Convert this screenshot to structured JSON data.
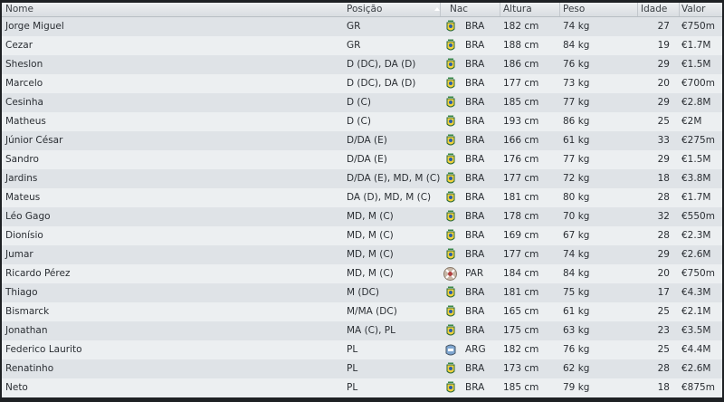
{
  "columns": {
    "name": "Nome",
    "position": "Posição",
    "nationality": "Nac",
    "height": "Altura",
    "weight": "Peso",
    "age": "Idade",
    "value": "Valor"
  },
  "players": [
    {
      "name": "Jorge Miguel",
      "position": "GR",
      "nat": "BRA",
      "height": "182 cm",
      "weight": "74 kg",
      "age": "27",
      "value": "€750m"
    },
    {
      "name": "Cezar",
      "position": "GR",
      "nat": "BRA",
      "height": "188 cm",
      "weight": "84 kg",
      "age": "19",
      "value": "€1.7M"
    },
    {
      "name": "Sheslon",
      "position": "D (DC), DA (D)",
      "nat": "BRA",
      "height": "186 cm",
      "weight": "76 kg",
      "age": "29",
      "value": "€1.5M"
    },
    {
      "name": "Marcelo",
      "position": "D (DC), DA (D)",
      "nat": "BRA",
      "height": "177 cm",
      "weight": "73 kg",
      "age": "20",
      "value": "€700m"
    },
    {
      "name": "Cesinha",
      "position": "D (C)",
      "nat": "BRA",
      "height": "185 cm",
      "weight": "77 kg",
      "age": "29",
      "value": "€2.8M"
    },
    {
      "name": "Matheus",
      "position": "D (C)",
      "nat": "BRA",
      "height": "193 cm",
      "weight": "86 kg",
      "age": "25",
      "value": "€2M"
    },
    {
      "name": "Júnior César",
      "position": "D/DA (E)",
      "nat": "BRA",
      "height": "166 cm",
      "weight": "61 kg",
      "age": "33",
      "value": "€275m"
    },
    {
      "name": "Sandro",
      "position": "D/DA (E)",
      "nat": "BRA",
      "height": "176 cm",
      "weight": "77 kg",
      "age": "29",
      "value": "€1.5M"
    },
    {
      "name": "Jardins",
      "position": "D/DA (E), MD, M (C)",
      "nat": "BRA",
      "height": "177 cm",
      "weight": "72 kg",
      "age": "18",
      "value": "€3.8M"
    },
    {
      "name": "Mateus",
      "position": "DA (D), MD, M (C)",
      "nat": "BRA",
      "height": "181 cm",
      "weight": "80 kg",
      "age": "28",
      "value": "€1.7M"
    },
    {
      "name": "Léo Gago",
      "position": "MD, M (C)",
      "nat": "BRA",
      "height": "178 cm",
      "weight": "70 kg",
      "age": "32",
      "value": "€550m"
    },
    {
      "name": "Dionísio",
      "position": "MD, M (C)",
      "nat": "BRA",
      "height": "169 cm",
      "weight": "67 kg",
      "age": "28",
      "value": "€2.3M"
    },
    {
      "name": "Jumar",
      "position": "MD, M (C)",
      "nat": "BRA",
      "height": "177 cm",
      "weight": "74 kg",
      "age": "29",
      "value": "€2.6M"
    },
    {
      "name": "Ricardo Pérez",
      "position": "MD, M (C)",
      "nat": "PAR",
      "height": "184 cm",
      "weight": "84 kg",
      "age": "20",
      "value": "€750m"
    },
    {
      "name": "Thiago",
      "position": "M (DC)",
      "nat": "BRA",
      "height": "181 cm",
      "weight": "75 kg",
      "age": "17",
      "value": "€4.3M"
    },
    {
      "name": "Bismarck",
      "position": "M/MA (DC)",
      "nat": "BRA",
      "height": "165 cm",
      "weight": "61 kg",
      "age": "25",
      "value": "€2.1M"
    },
    {
      "name": "Jonathan",
      "position": "MA (C), PL",
      "nat": "BRA",
      "height": "175 cm",
      "weight": "63 kg",
      "age": "23",
      "value": "€3.5M"
    },
    {
      "name": "Federico Laurito",
      "position": "PL",
      "nat": "ARG",
      "height": "182 cm",
      "weight": "76 kg",
      "age": "25",
      "value": "€4.4M"
    },
    {
      "name": "Renatinho",
      "position": "PL",
      "nat": "BRA",
      "height": "173 cm",
      "weight": "62 kg",
      "age": "28",
      "value": "€2.6M"
    },
    {
      "name": "Neto",
      "position": "PL",
      "nat": "BRA",
      "height": "185 cm",
      "weight": "79 kg",
      "age": "18",
      "value": "€875m"
    }
  ],
  "flag_colors": {
    "BRA": "#f2d23a",
    "PAR": "#c8b8a8",
    "ARG": "#7fa6d0"
  }
}
